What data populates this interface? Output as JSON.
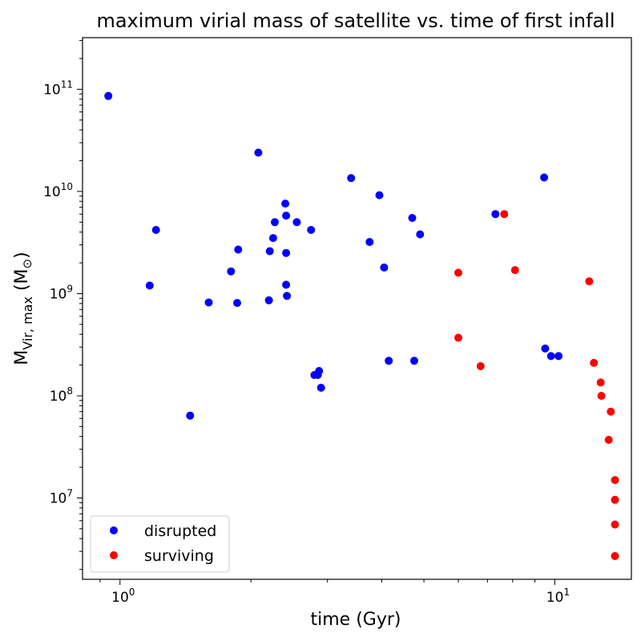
{
  "chart_data": {
    "type": "scatter",
    "title": "maximum virial mass of satellite vs. time of first infall",
    "xlabel": "time (Gyr)",
    "ylabel_main": "M",
    "ylabel_sub": "Vir, max",
    "ylabel_unit_open": " (M",
    "ylabel_unit_sub": "⊙",
    "ylabel_unit_close": ")",
    "xscale": "log",
    "yscale": "log",
    "xlim": [
      0.82,
      15.0
    ],
    "ylim": [
      1600000.0,
      320000000000.0
    ],
    "grid": false,
    "legend_position": "lower-left",
    "x_ticks": [
      {
        "value": 1,
        "base": "10",
        "exp": "0"
      },
      {
        "value": 10,
        "base": "10",
        "exp": "1"
      }
    ],
    "y_ticks": [
      {
        "value": 10000000.0,
        "base": "10",
        "exp": "7"
      },
      {
        "value": 100000000.0,
        "base": "10",
        "exp": "8"
      },
      {
        "value": 1000000000.0,
        "base": "10",
        "exp": "9"
      },
      {
        "value": 10000000000.0,
        "base": "10",
        "exp": "10"
      },
      {
        "value": 100000000000.0,
        "base": "10",
        "exp": "11"
      }
    ],
    "series": [
      {
        "name": "disrupted",
        "color": "#0000ff",
        "points": [
          [
            0.94,
            86000000000.0
          ],
          [
            1.17,
            1200000000.0
          ],
          [
            1.21,
            4200000000.0
          ],
          [
            1.45,
            64000000.0
          ],
          [
            1.6,
            820000000.0
          ],
          [
            1.8,
            1650000000.0
          ],
          [
            1.86,
            810000000.0
          ],
          [
            1.87,
            2700000000.0
          ],
          [
            2.08,
            24000000000.0
          ],
          [
            2.2,
            860000000.0
          ],
          [
            2.21,
            2600000000.0
          ],
          [
            2.25,
            3500000000.0
          ],
          [
            2.27,
            5000000000.0
          ],
          [
            2.4,
            7600000000.0
          ],
          [
            2.41,
            5800000000.0
          ],
          [
            2.41,
            2500000000.0
          ],
          [
            2.41,
            1220000000.0
          ],
          [
            2.42,
            950000000.0
          ],
          [
            2.55,
            5000000000.0
          ],
          [
            2.75,
            4200000000.0
          ],
          [
            2.8,
            160000000.0
          ],
          [
            2.85,
            160000000.0
          ],
          [
            2.87,
            175000000.0
          ],
          [
            2.9,
            120000000.0
          ],
          [
            3.4,
            13500000000.0
          ],
          [
            3.75,
            3200000000.0
          ],
          [
            3.95,
            9200000000.0
          ],
          [
            4.05,
            1800000000.0
          ],
          [
            4.15,
            220000000.0
          ],
          [
            4.7,
            5500000000.0
          ],
          [
            4.75,
            220000000.0
          ],
          [
            4.9,
            3800000000.0
          ],
          [
            7.3,
            6000000000.0
          ],
          [
            9.45,
            13700000000.0
          ],
          [
            9.5,
            290000000.0
          ],
          [
            9.8,
            245000000.0
          ],
          [
            10.2,
            245000000.0
          ]
        ]
      },
      {
        "name": "surviving",
        "color": "#ff0000",
        "points": [
          [
            6.0,
            1600000000.0
          ],
          [
            6.0,
            370000000.0
          ],
          [
            6.75,
            195000000.0
          ],
          [
            7.65,
            6000000000.0
          ],
          [
            8.1,
            1700000000.0
          ],
          [
            12.0,
            1320000000.0
          ],
          [
            12.3,
            210000000.0
          ],
          [
            12.75,
            135000000.0
          ],
          [
            12.8,
            100000000.0
          ],
          [
            13.45,
            70000000.0
          ],
          [
            13.3,
            37000000.0
          ],
          [
            13.75,
            15000000.0
          ],
          [
            13.75,
            9600000.0
          ],
          [
            13.75,
            5500000.0
          ],
          [
            13.75,
            2700000.0
          ]
        ]
      }
    ]
  }
}
